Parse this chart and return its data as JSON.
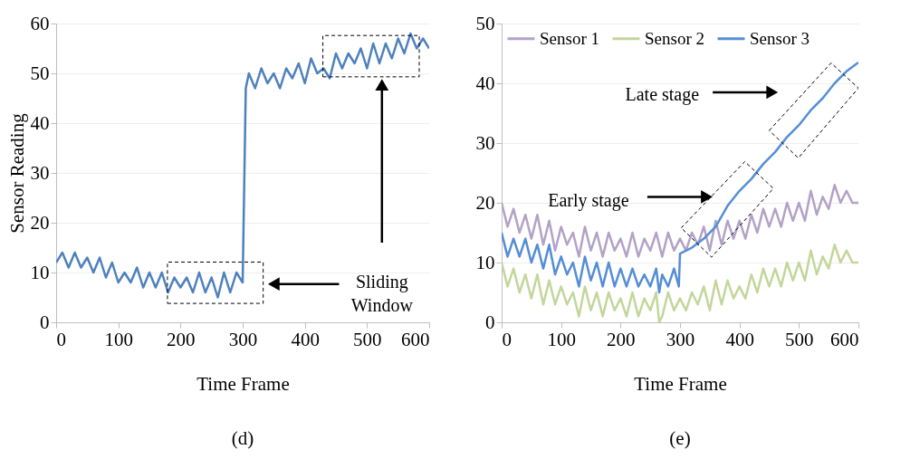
{
  "chart_data": [
    {
      "type": "line",
      "title": "(d)",
      "xlabel": "Time Frame",
      "ylabel": "Sensor Reading",
      "xlim": [
        0,
        600
      ],
      "ylim": [
        0,
        60
      ],
      "xticks": [
        0,
        100,
        200,
        300,
        400,
        500,
        600
      ],
      "yticks": [
        0,
        10,
        20,
        30,
        40,
        50,
        60
      ],
      "grid": "y",
      "annotations": [
        "Sliding\nWindow"
      ],
      "series": [
        {
          "color": "#4f81bd",
          "x": [
            0,
            10,
            20,
            30,
            40,
            50,
            60,
            70,
            80,
            90,
            100,
            110,
            120,
            130,
            140,
            150,
            160,
            170,
            180,
            190,
            200,
            210,
            220,
            230,
            240,
            250,
            260,
            270,
            280,
            290,
            300,
            305,
            310,
            320,
            330,
            340,
            350,
            360,
            370,
            380,
            390,
            400,
            410,
            420,
            430,
            440,
            450,
            460,
            470,
            480,
            490,
            500,
            510,
            520,
            530,
            540,
            550,
            560,
            570,
            580,
            590,
            600
          ],
          "values": [
            12,
            14,
            11,
            14,
            11,
            13,
            10,
            13,
            9,
            12,
            8,
            10,
            8,
            11,
            7,
            10,
            7,
            10,
            6,
            9,
            7,
            9,
            6,
            10,
            6,
            9,
            5,
            10,
            6,
            10,
            8,
            47,
            50,
            47,
            51,
            48,
            50,
            47,
            51,
            49,
            52,
            48,
            53,
            50,
            51,
            49,
            54,
            51,
            54,
            52,
            55,
            51,
            56,
            52,
            56,
            53,
            57,
            54,
            58,
            55,
            57,
            55
          ]
        }
      ]
    },
    {
      "type": "line",
      "title": "(e)",
      "xlabel": "Time Frame",
      "xlim": [
        0,
        600
      ],
      "ylim": [
        0,
        50
      ],
      "xticks": [
        0,
        100,
        200,
        300,
        400,
        500,
        600
      ],
      "yticks": [
        0,
        10,
        20,
        30,
        40,
        50
      ],
      "grid": "y",
      "legend": "top",
      "annotations": [
        "Late stage",
        "Early stage"
      ],
      "series": [
        {
          "name": "Sensor 1",
          "color": "#b3a2c7",
          "x": [
            0,
            10,
            20,
            30,
            40,
            50,
            60,
            70,
            80,
            90,
            100,
            110,
            120,
            130,
            140,
            150,
            160,
            170,
            180,
            190,
            200,
            210,
            220,
            230,
            240,
            250,
            260,
            270,
            280,
            290,
            300,
            310,
            320,
            330,
            340,
            350,
            360,
            370,
            380,
            390,
            400,
            410,
            420,
            430,
            440,
            450,
            460,
            470,
            480,
            490,
            500,
            510,
            520,
            530,
            540,
            550,
            560,
            570,
            580,
            590,
            600
          ],
          "values": [
            20,
            16,
            19,
            15,
            18,
            14,
            18,
            13,
            17,
            12,
            16,
            13,
            15,
            11,
            16,
            12,
            15,
            11,
            15,
            12,
            14,
            11,
            15,
            11,
            14,
            12,
            15,
            11,
            15,
            12,
            14,
            12,
            15,
            13,
            16,
            12,
            17,
            13,
            17,
            14,
            17,
            14,
            18,
            15,
            19,
            16,
            19,
            16,
            20,
            17,
            20,
            17,
            22,
            18,
            21,
            19,
            23,
            20,
            22,
            20,
            20
          ]
        },
        {
          "name": "Sensor 2",
          "color": "#c3d69b",
          "x": [
            0,
            10,
            20,
            30,
            40,
            50,
            60,
            70,
            80,
            90,
            100,
            110,
            120,
            130,
            140,
            150,
            160,
            170,
            180,
            190,
            200,
            210,
            220,
            230,
            240,
            250,
            260,
            265,
            270,
            280,
            290,
            300,
            310,
            320,
            330,
            340,
            350,
            360,
            370,
            380,
            390,
            400,
            410,
            420,
            430,
            440,
            450,
            460,
            470,
            480,
            490,
            500,
            510,
            520,
            530,
            540,
            550,
            560,
            570,
            580,
            590,
            600
          ],
          "values": [
            10,
            6,
            9,
            5,
            8,
            4,
            8,
            3,
            7,
            3,
            6,
            3,
            5,
            1,
            6,
            2,
            5,
            1,
            5,
            2,
            4,
            1,
            5,
            1,
            4,
            2,
            5,
            0,
            1,
            5,
            2,
            4,
            2,
            5,
            3,
            6,
            2,
            7,
            3,
            7,
            4,
            6,
            4,
            8,
            5,
            9,
            6,
            9,
            6,
            10,
            7,
            10,
            7,
            12,
            8,
            11,
            9,
            13,
            10,
            12,
            10,
            10
          ]
        },
        {
          "name": "Sensor 3",
          "color": "#558ed5",
          "x": [
            0,
            10,
            20,
            30,
            40,
            50,
            60,
            70,
            80,
            90,
            100,
            110,
            120,
            130,
            140,
            150,
            160,
            170,
            180,
            190,
            200,
            210,
            220,
            230,
            240,
            250,
            260,
            265,
            270,
            280,
            290,
            298,
            300,
            320,
            340,
            360,
            380,
            400,
            420,
            440,
            460,
            480,
            500,
            520,
            540,
            560,
            580,
            600
          ],
          "values": [
            15,
            11,
            14,
            11,
            14,
            10,
            13,
            9,
            13,
            8,
            11,
            8,
            10,
            6,
            11,
            7,
            10,
            6,
            10,
            6,
            9,
            6,
            9,
            6,
            8,
            6,
            9,
            5,
            8,
            6,
            9,
            6,
            11.5,
            12.5,
            14,
            16,
            19.5,
            22,
            24,
            26.5,
            28.5,
            31,
            33,
            35.5,
            37.5,
            40,
            42,
            43.5
          ]
        }
      ]
    }
  ]
}
